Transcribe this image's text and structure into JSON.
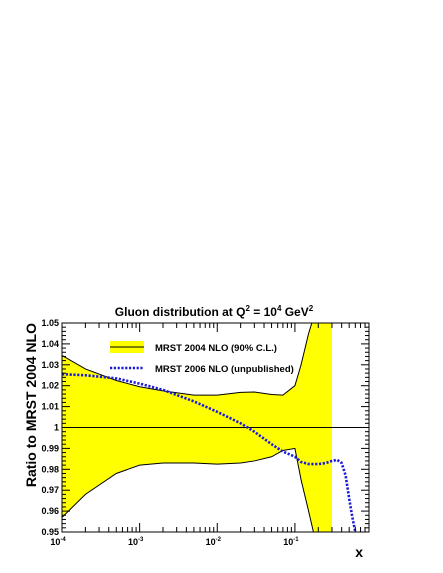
{
  "chart_data": {
    "type": "line",
    "title": {
      "prefix": "Gluon distribution at Q",
      "q2_exp": "2",
      "middle": " = 10",
      "val_exp": "4",
      "unit": " GeV",
      "unit_exp": "2"
    },
    "xlabel": "x",
    "ylabel": "Ratio to MRST 2004 NLO",
    "x_scale": "log",
    "xlim": [
      0.0001,
      0.9
    ],
    "ylim": [
      0.95,
      1.05
    ],
    "x_ticks": [
      {
        "value": 0.0001,
        "base": "10",
        "exp": "-4"
      },
      {
        "value": 0.001,
        "base": "10",
        "exp": "-3"
      },
      {
        "value": 0.01,
        "base": "10",
        "exp": "-2"
      },
      {
        "value": 0.1,
        "base": "10",
        "exp": "-1"
      }
    ],
    "y_ticks": [
      {
        "value": 0.95,
        "label": "0.95"
      },
      {
        "value": 0.96,
        "label": "0.96"
      },
      {
        "value": 0.97,
        "label": "0.97"
      },
      {
        "value": 0.98,
        "label": "0.98"
      },
      {
        "value": 0.99,
        "label": "0.99"
      },
      {
        "value": 1.0,
        "label": "1"
      },
      {
        "value": 1.01,
        "label": "1.01"
      },
      {
        "value": 1.02,
        "label": "1.02"
      },
      {
        "value": 1.03,
        "label": "1.03"
      },
      {
        "value": 1.04,
        "label": "1.04"
      },
      {
        "value": 1.05,
        "label": "1.05"
      }
    ],
    "band": {
      "name": "MRST 2004 NLO (90% C.L.)",
      "color": "#ffff00",
      "line_color": "#000000",
      "x": [
        0.0001,
        0.0002,
        0.0005,
        0.001,
        0.002,
        0.005,
        0.01,
        0.02,
        0.03,
        0.05,
        0.07,
        0.1,
        0.12,
        0.15,
        0.2,
        0.3
      ],
      "upper": [
        1.0345,
        1.028,
        1.0225,
        1.0195,
        1.0175,
        1.0155,
        1.0155,
        1.0168,
        1.017,
        1.0158,
        1.0155,
        1.02,
        1.03,
        1.045,
        1.06,
        1.07
      ],
      "lower": [
        0.957,
        0.968,
        0.978,
        0.982,
        0.983,
        0.983,
        0.9825,
        0.983,
        0.984,
        0.986,
        0.989,
        0.99,
        0.975,
        0.96,
        0.94,
        0.92
      ]
    },
    "reference_line": {
      "y": 1.0,
      "color": "#000000"
    },
    "series": [
      {
        "name": "MRST 2006 NLO (unpublished)",
        "style": "dotted",
        "color": "#1a1ad9",
        "x": [
          0.0001,
          0.0002,
          0.0005,
          0.001,
          0.002,
          0.005,
          0.01,
          0.02,
          0.03,
          0.05,
          0.07,
          0.1,
          0.12,
          0.15,
          0.2,
          0.25,
          0.3,
          0.35,
          0.4,
          0.45,
          0.5,
          0.55,
          0.6
        ],
        "y": [
          1.0255,
          1.025,
          1.0235,
          1.021,
          1.018,
          1.0125,
          1.0075,
          1.002,
          0.998,
          0.992,
          0.9885,
          0.986,
          0.9835,
          0.9825,
          0.9825,
          0.983,
          0.984,
          0.9845,
          0.983,
          0.977,
          0.966,
          0.957,
          0.95
        ]
      }
    ],
    "legend": {
      "position": "top-left",
      "entries": [
        {
          "label": "MRST 2004 NLO (90% C.L.)",
          "kind": "band"
        },
        {
          "label": "MRST 2006 NLO (unpublished)",
          "kind": "dotted"
        }
      ]
    },
    "grid": false
  }
}
